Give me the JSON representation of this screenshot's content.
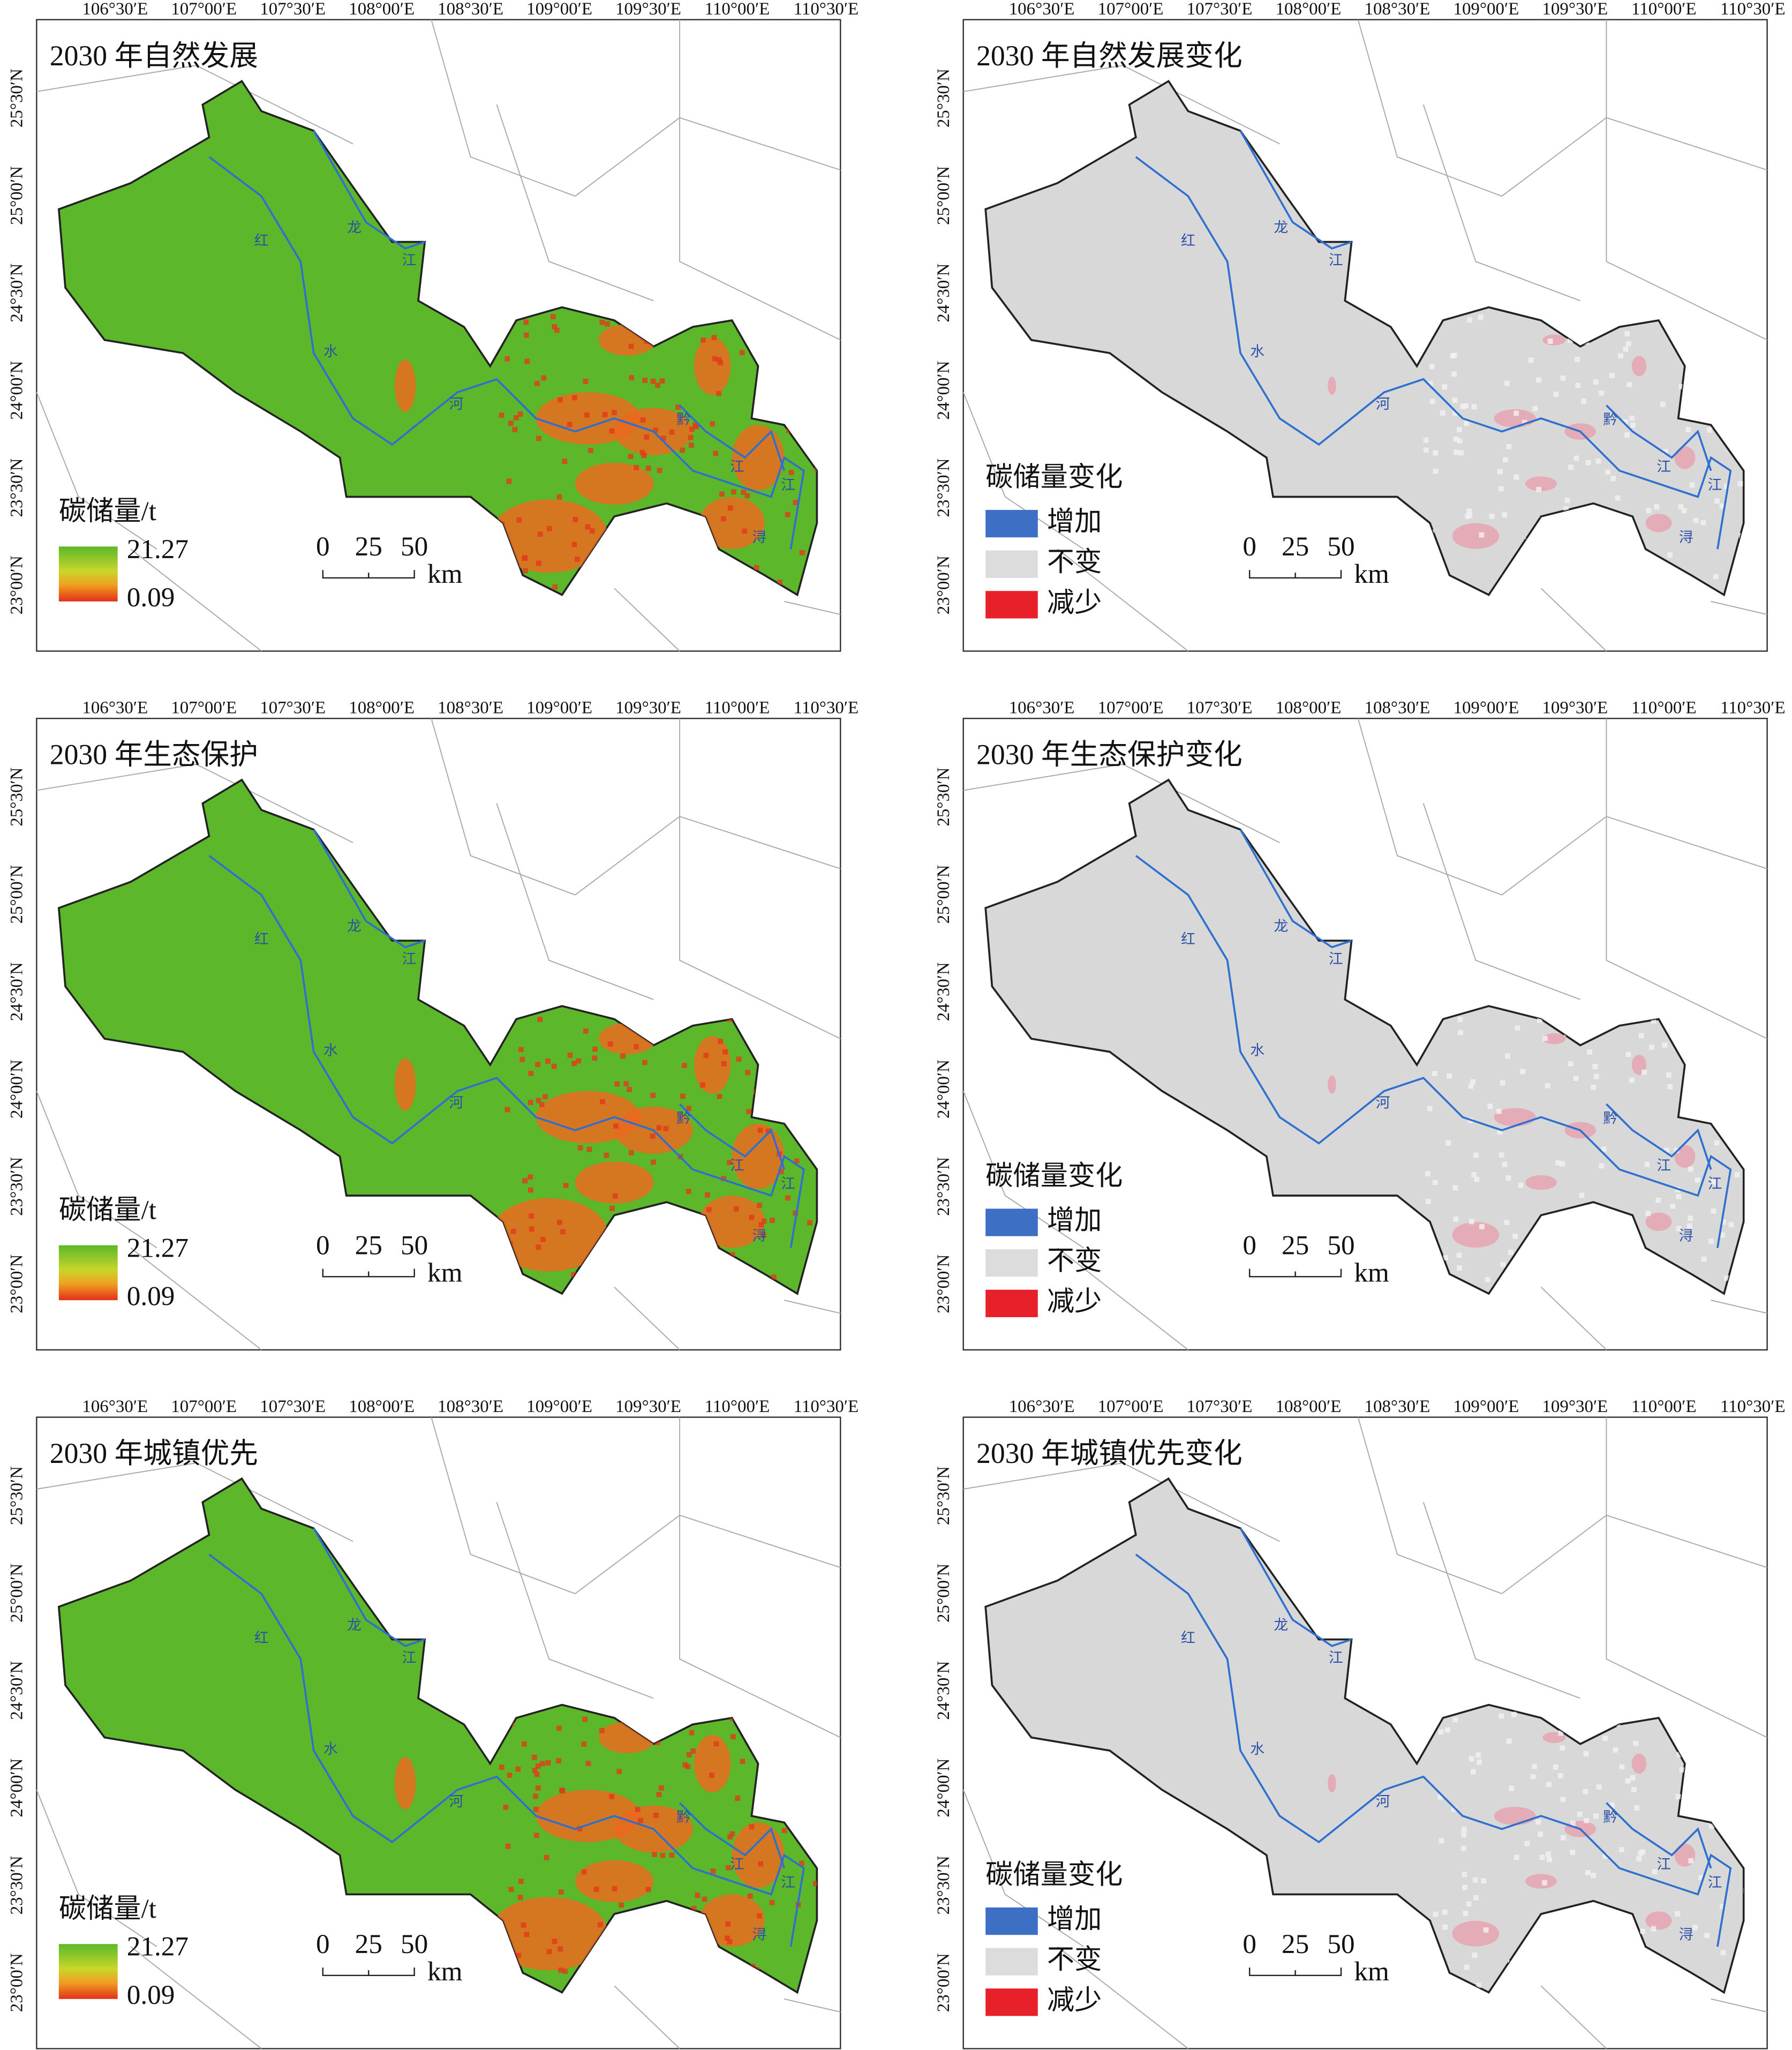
{
  "panels": [
    {
      "title": "2030 年自然发展",
      "legend": {
        "title": "碳储量/t",
        "max": "21.27",
        "min": "0.09"
      }
    },
    {
      "title": "2030 年自然发展变化",
      "legend": {
        "title": "碳储量变化",
        "items": [
          "增加",
          "不变",
          "减少"
        ]
      }
    },
    {
      "title": "2030 年生态保护",
      "legend": {
        "title": "碳储量/t",
        "max": "21.27",
        "min": "0.09"
      }
    },
    {
      "title": "2030 年生态保护变化",
      "legend": {
        "title": "碳储量变化",
        "items": [
          "增加",
          "不变",
          "减少"
        ]
      }
    },
    {
      "title": "2030 年城镇优先",
      "legend": {
        "title": "碳储量/t",
        "max": "21.27",
        "min": "0.09"
      }
    },
    {
      "title": "2030 年城镇优先变化",
      "legend": {
        "title": "碳储量变化",
        "items": [
          "增加",
          "不变",
          "减少"
        ]
      }
    }
  ],
  "longitude_labels": [
    "106°30′E",
    "107°00′E",
    "107°30′E",
    "108°00′E",
    "108°30′E",
    "109°00′E",
    "109°30′E",
    "110°00′E",
    "110°30′E"
  ],
  "latitude_labels": [
    "25°30′N",
    "25°00′N",
    "24°30′N",
    "24°00′N",
    "23°30′N",
    "23°00′N"
  ],
  "scale_bar": {
    "ticks": [
      "0",
      "25",
      "50"
    ],
    "unit": "km"
  },
  "river_labels": [
    "红",
    "龙",
    "江",
    "水",
    "河",
    "黔",
    "江",
    "江",
    "浔"
  ]
}
